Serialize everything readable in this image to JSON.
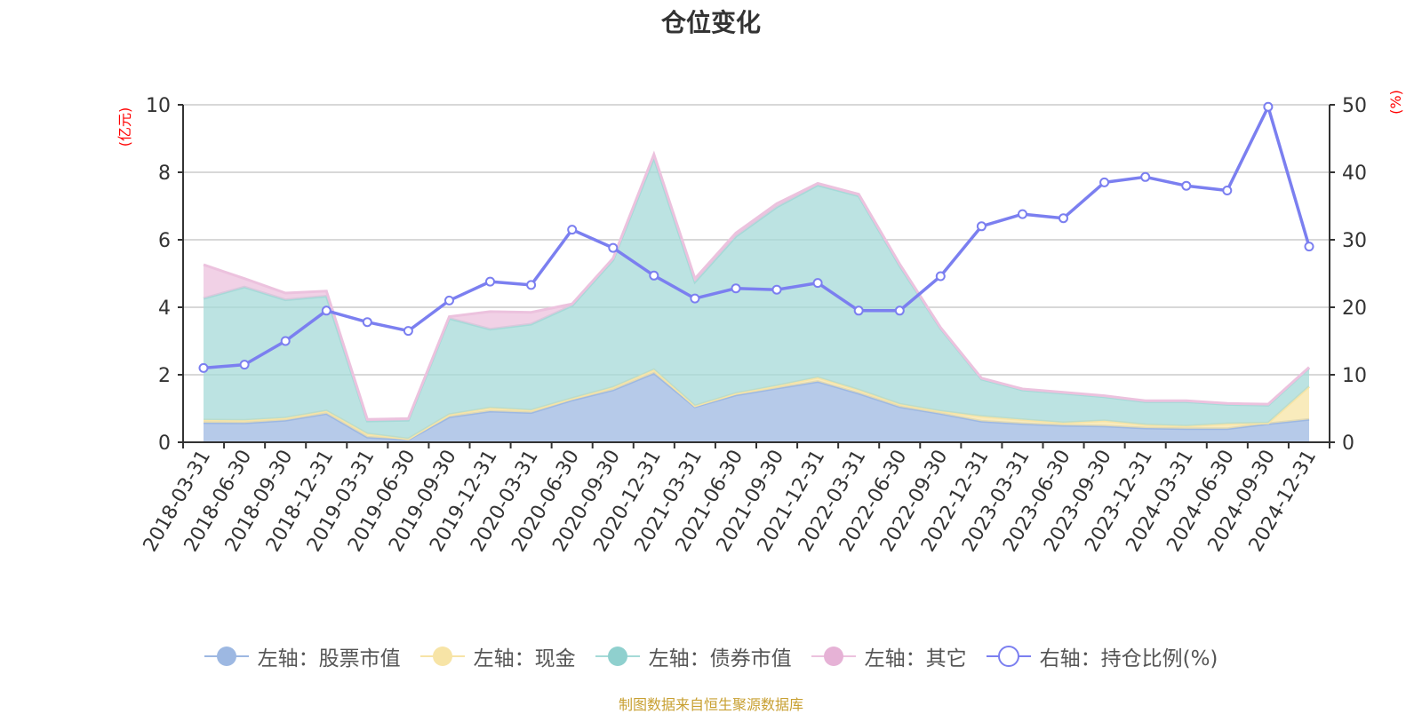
{
  "chart_data": {
    "type": "area",
    "title": "仓位变化",
    "source_note": "制图数据来自恒生聚源数据库",
    "left_axis_unit": "(亿元)",
    "right_axis_unit": "(%)",
    "ylim_left": [
      0,
      10
    ],
    "ylim_right": [
      0,
      50
    ],
    "left_ticks": [
      "0",
      "2",
      "4",
      "6",
      "8",
      "10"
    ],
    "right_ticks": [
      "0",
      "10",
      "20",
      "30",
      "40",
      "50"
    ],
    "grid": true,
    "legend_position": "bottom",
    "categories": [
      "2018-03-31",
      "2018-06-30",
      "2018-09-30",
      "2018-12-31",
      "2019-03-31",
      "2019-06-30",
      "2019-09-30",
      "2019-12-31",
      "2020-03-31",
      "2020-06-30",
      "2020-09-30",
      "2020-12-31",
      "2021-03-31",
      "2021-06-30",
      "2021-09-30",
      "2021-12-31",
      "2022-03-31",
      "2022-06-30",
      "2022-09-30",
      "2022-12-31",
      "2023-03-31",
      "2023-06-30",
      "2023-09-30",
      "2023-12-31",
      "2024-03-31",
      "2024-06-30",
      "2024-09-30",
      "2024-12-31"
    ],
    "stacked_series": [
      {
        "name": "左轴：股票市值",
        "color": "#9db8e2",
        "values": [
          0.58,
          0.57,
          0.65,
          0.85,
          0.15,
          0.08,
          0.75,
          0.92,
          0.88,
          1.25,
          1.55,
          2.05,
          1.05,
          1.4,
          1.6,
          1.8,
          1.45,
          1.05,
          0.85,
          0.62,
          0.55,
          0.5,
          0.48,
          0.42,
          0.4,
          0.4,
          0.55,
          0.68
        ]
      },
      {
        "name": "左轴：现金",
        "color": "#f7e4a6",
        "values": [
          0.08,
          0.08,
          0.07,
          0.08,
          0.1,
          0.02,
          0.07,
          0.1,
          0.07,
          0.05,
          0.08,
          0.1,
          0.03,
          0.05,
          0.07,
          0.12,
          0.1,
          0.08,
          0.07,
          0.15,
          0.12,
          0.08,
          0.16,
          0.1,
          0.08,
          0.15,
          0.02,
          0.97
        ]
      },
      {
        "name": "左轴：债券市值",
        "color": "#a5dad8",
        "values": [
          3.6,
          3.95,
          3.5,
          3.4,
          0.38,
          0.55,
          2.85,
          2.33,
          2.55,
          2.75,
          3.77,
          6.28,
          3.67,
          4.65,
          5.3,
          5.7,
          5.75,
          4.1,
          2.45,
          1.1,
          0.88,
          0.87,
          0.71,
          0.68,
          0.72,
          0.57,
          0.53,
          0.55
        ]
      },
      {
        "name": "左轴：其它",
        "color": "#ecc2de",
        "values": [
          1.0,
          0.25,
          0.2,
          0.15,
          0.05,
          0.05,
          0.05,
          0.52,
          0.35,
          0.05,
          0.05,
          0.1,
          0.1,
          0.1,
          0.1,
          0.05,
          0.05,
          0.05,
          0.03,
          0.03,
          0.03,
          0.03,
          0.03,
          0.03,
          0.03,
          0.03,
          0.03,
          0.02
        ]
      }
    ],
    "line_series": {
      "name": "右轴：持仓比例(%)",
      "color": "#7b7ff0",
      "values": [
        11.0,
        11.5,
        15.0,
        19.5,
        17.8,
        16.5,
        21.0,
        23.8,
        23.3,
        31.5,
        28.8,
        24.7,
        21.3,
        22.8,
        22.6,
        23.6,
        19.5,
        19.5,
        24.6,
        32.0,
        33.8,
        33.2,
        38.5,
        39.3,
        38.0,
        37.3,
        49.7,
        29.0
      ]
    }
  }
}
